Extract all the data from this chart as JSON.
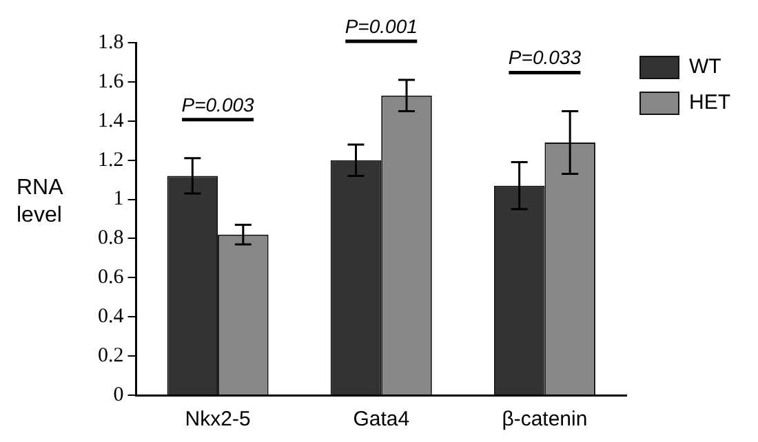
{
  "chart_data": {
    "type": "bar",
    "ylabel": "RNA level",
    "categories": [
      "Nkx2-5",
      "Gata4",
      "β-catenin"
    ],
    "series": [
      {
        "name": "WT",
        "color": "#333333",
        "values": [
          1.12,
          1.2,
          1.07
        ],
        "errors": [
          0.09,
          0.08,
          0.12
        ]
      },
      {
        "name": "HET",
        "color": "#888888",
        "values": [
          0.82,
          1.53,
          1.29
        ],
        "errors": [
          0.05,
          0.08,
          0.16
        ]
      }
    ],
    "ylim": [
      0,
      1.8
    ],
    "yticks": [
      0,
      0.2,
      0.4,
      0.6,
      0.8,
      1,
      1.2,
      1.4,
      1.6,
      1.8
    ],
    "annotations": [
      "P=0.003",
      "P=0.001",
      "P=0.033"
    ],
    "grid": false,
    "legend": "top right"
  }
}
